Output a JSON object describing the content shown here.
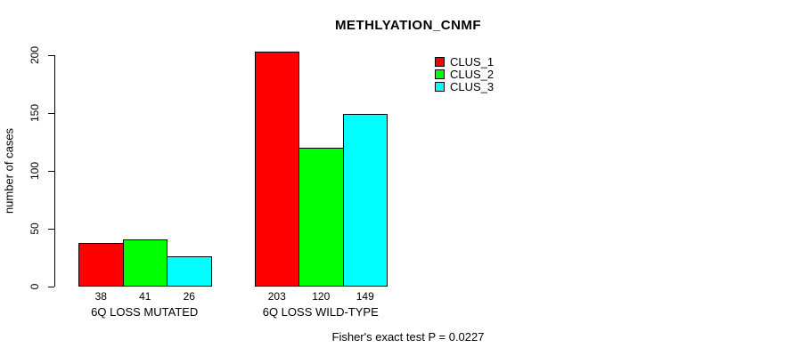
{
  "chart_data": {
    "type": "bar",
    "title": "METHLYATION_CNMF",
    "ylabel": "number of cases",
    "xlabel": "",
    "categories": [
      "6Q LOSS MUTATED",
      "6Q LOSS WILD-TYPE"
    ],
    "series": [
      {
        "name": "CLUS_1",
        "color": "#FF0000",
        "values": [
          38,
          203
        ]
      },
      {
        "name": "CLUS_2",
        "color": "#00FF00",
        "values": [
          41,
          120
        ]
      },
      {
        "name": "CLUS_3",
        "color": "#00FFFF",
        "values": [
          26,
          149
        ]
      }
    ],
    "yticks": [
      0,
      50,
      100,
      150,
      200
    ],
    "ylim": [
      0,
      210
    ],
    "grid": false,
    "legend_position": "top-right",
    "bar_border_color": "#000000",
    "annotation": "Fisher's exact test P = 0.0227"
  }
}
